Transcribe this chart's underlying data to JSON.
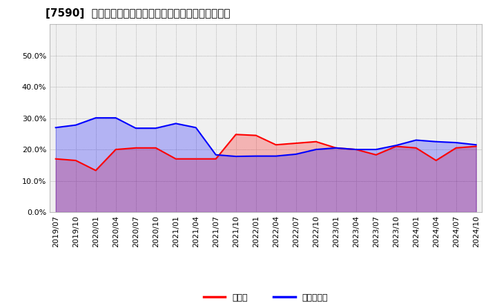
{
  "title": "[7590]  現預金、有利子負債の総資産に対する比率の推移",
  "x_labels": [
    "2019/07",
    "2019/10",
    "2020/01",
    "2020/04",
    "2020/07",
    "2020/10",
    "2021/01",
    "2021/04",
    "2021/07",
    "2021/10",
    "2022/01",
    "2022/04",
    "2022/07",
    "2022/10",
    "2023/01",
    "2023/04",
    "2023/07",
    "2023/10",
    "2024/01",
    "2024/04",
    "2024/07",
    "2024/10"
  ],
  "cash_ratio": [
    0.17,
    0.165,
    0.133,
    0.2,
    0.205,
    0.205,
    0.17,
    0.17,
    0.17,
    0.248,
    0.245,
    0.215,
    0.22,
    0.225,
    0.205,
    0.2,
    0.183,
    0.21,
    0.205,
    0.165,
    0.205,
    0.21
  ],
  "debt_ratio": [
    0.27,
    0.278,
    0.301,
    0.301,
    0.268,
    0.268,
    0.283,
    0.27,
    0.183,
    0.178,
    0.179,
    0.179,
    0.185,
    0.2,
    0.205,
    0.2,
    0.2,
    0.213,
    0.23,
    0.225,
    0.222,
    0.215
  ],
  "cash_color": "#ff0000",
  "debt_color": "#0000ff",
  "ylim": [
    0.0,
    0.6
  ],
  "yticks": [
    0.0,
    0.1,
    0.2,
    0.3,
    0.4,
    0.5
  ],
  "legend_cash": "現預金",
  "legend_debt": "有利子負債",
  "bg_color": "#ffffff",
  "plot_bg_color": "#f0f0f0",
  "grid_color": "#999999",
  "title_fontsize": 11,
  "tick_fontsize": 8,
  "legend_fontsize": 9
}
